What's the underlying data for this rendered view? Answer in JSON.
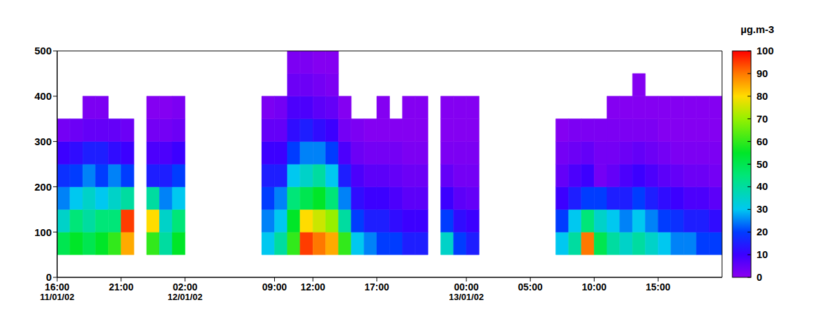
{
  "chart_data": {
    "type": "heatmap",
    "xlim": [
      0,
      52
    ],
    "xticks": [
      {
        "value": 0,
        "label": "16:00"
      },
      {
        "value": 5,
        "label": "21:00"
      },
      {
        "value": 10,
        "label": "02:00"
      },
      {
        "value": 17,
        "label": "09:00"
      },
      {
        "value": 20,
        "label": "12:00"
      },
      {
        "value": 25,
        "label": "17:00"
      },
      {
        "value": 32,
        "label": "00:00"
      },
      {
        "value": 37,
        "label": "05:00"
      },
      {
        "value": 42,
        "label": "10:00"
      },
      {
        "value": 47,
        "label": "15:00"
      }
    ],
    "x_date_labels": [
      {
        "value": 0,
        "label": "11/01/02"
      },
      {
        "value": 10,
        "label": "12/01/02"
      },
      {
        "value": 32,
        "label": "13/01/02"
      }
    ],
    "ylim": [
      0,
      500
    ],
    "yticks": [
      0,
      100,
      200,
      300,
      400,
      500
    ],
    "heatmap": {
      "x": [
        0,
        1,
        2,
        3,
        4,
        5,
        6,
        7,
        8,
        9,
        10,
        11,
        12,
        13,
        14,
        15,
        16,
        17,
        18,
        19,
        20,
        21,
        22,
        23,
        24,
        25,
        26,
        27,
        28,
        29,
        30,
        31,
        32,
        33,
        34,
        35,
        36,
        37,
        38,
        39,
        40,
        41,
        42,
        43,
        44,
        45,
        46,
        47,
        48,
        49,
        50,
        51
      ],
      "y": [
        50,
        100,
        150,
        200,
        250,
        300,
        350,
        400,
        450
      ],
      "z": [
        [
          50,
          35,
          25,
          18,
          10,
          3,
          null,
          null,
          null
        ],
        [
          55,
          45,
          30,
          20,
          12,
          4,
          null,
          null,
          null
        ],
        [
          50,
          40,
          35,
          25,
          15,
          5,
          2,
          null,
          null
        ],
        [
          55,
          45,
          30,
          20,
          15,
          5,
          2,
          null,
          null
        ],
        [
          60,
          45,
          35,
          25,
          12,
          5,
          null,
          null,
          null
        ],
        [
          85,
          95,
          40,
          20,
          10,
          4,
          null,
          null,
          null
        ],
        null,
        [
          60,
          80,
          40,
          15,
          8,
          3,
          1,
          null,
          null
        ],
        [
          40,
          35,
          25,
          15,
          8,
          3,
          1,
          null,
          null
        ],
        [
          55,
          45,
          30,
          20,
          10,
          4,
          2,
          null,
          null
        ],
        null,
        null,
        null,
        null,
        null,
        null,
        [
          30,
          25,
          20,
          15,
          10,
          5,
          2,
          null,
          null
        ],
        [
          40,
          30,
          25,
          15,
          10,
          5,
          3,
          null,
          null
        ],
        [
          60,
          55,
          45,
          30,
          20,
          12,
          8,
          4,
          2
        ],
        [
          95,
          80,
          50,
          35,
          25,
          15,
          8,
          4,
          2
        ],
        [
          90,
          75,
          55,
          40,
          25,
          12,
          6,
          3,
          1
        ],
        [
          85,
          70,
          45,
          30,
          20,
          10,
          5,
          2,
          1
        ],
        [
          60,
          40,
          25,
          15,
          8,
          3,
          1,
          null,
          null
        ],
        [
          30,
          20,
          12,
          8,
          4,
          2,
          null,
          null,
          null
        ],
        [
          25,
          15,
          10,
          6,
          3,
          1,
          null,
          null,
          null
        ],
        [
          20,
          15,
          10,
          6,
          3,
          1,
          1,
          null,
          null
        ],
        [
          20,
          12,
          8,
          5,
          3,
          1,
          null,
          null,
          null
        ],
        [
          15,
          10,
          6,
          4,
          2,
          1,
          1,
          null,
          null
        ],
        [
          15,
          10,
          6,
          4,
          2,
          1,
          1,
          null,
          null
        ],
        null,
        [
          35,
          20,
          10,
          5,
          2,
          1,
          1,
          null,
          null
        ],
        [
          20,
          12,
          6,
          3,
          2,
          1,
          1,
          null,
          null
        ],
        [
          15,
          10,
          5,
          3,
          2,
          1,
          1,
          null,
          null
        ],
        null,
        null,
        null,
        null,
        null,
        null,
        [
          30,
          20,
          10,
          5,
          3,
          1,
          null,
          null,
          null
        ],
        [
          40,
          30,
          15,
          8,
          4,
          2,
          null,
          null,
          null
        ],
        [
          90,
          45,
          20,
          10,
          5,
          2,
          null,
          null,
          null
        ],
        [
          50,
          35,
          20,
          3,
          3,
          2,
          null,
          null,
          null
        ],
        [
          40,
          30,
          15,
          5,
          3,
          2,
          1,
          null,
          null
        ],
        [
          35,
          25,
          15,
          8,
          4,
          2,
          1,
          null,
          null
        ],
        [
          40,
          30,
          20,
          10,
          5,
          2,
          1,
          1,
          null
        ],
        [
          35,
          25,
          15,
          8,
          4,
          2,
          1,
          null,
          null
        ],
        [
          30,
          20,
          12,
          6,
          3,
          1,
          1,
          null,
          null
        ],
        [
          25,
          18,
          10,
          5,
          2,
          1,
          1,
          null,
          null
        ],
        [
          25,
          15,
          8,
          4,
          2,
          1,
          1,
          null,
          null
        ],
        [
          20,
          15,
          8,
          4,
          2,
          1,
          1,
          null,
          null
        ],
        [
          20,
          12,
          6,
          3,
          2,
          1,
          1,
          null,
          null
        ]
      ]
    },
    "colorbar": {
      "label": "µg.m-3",
      "range": [
        0,
        100
      ],
      "ticks": [
        0,
        10,
        20,
        30,
        40,
        50,
        60,
        70,
        80,
        90,
        100
      ]
    }
  }
}
